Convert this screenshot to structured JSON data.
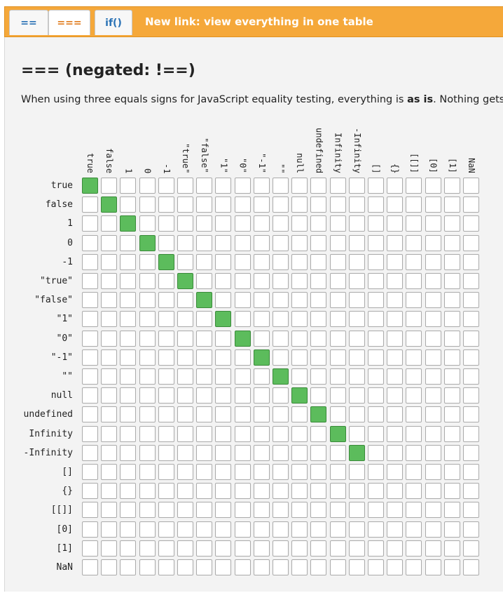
{
  "tabs": [
    {
      "label": "=="
    },
    {
      "label": "==="
    },
    {
      "label": "if()"
    }
  ],
  "new_link": "New link: view everything in one table",
  "title": "=== (negated: !==)",
  "intro": {
    "prefix": "When using three equals signs for JavaScript equality testing, everything is ",
    "bold": "as is",
    "suffix": ". Nothing gets co"
  },
  "colors": {
    "accent": "#f5a83a",
    "equal": "#5cbc5c",
    "not_equal": "#ffffff"
  },
  "labels": [
    "true",
    "false",
    "1",
    "0",
    "-1",
    "\"true\"",
    "\"false\"",
    "\"1\"",
    "\"0\"",
    "\"-1\"",
    "\"\"",
    "null",
    "undefined",
    "Infinity",
    "-Infinity",
    "[]",
    "{}",
    "[[]]",
    "[0]",
    "[1]",
    "NaN"
  ],
  "matrix_true_cells": [
    [
      0,
      0
    ],
    [
      1,
      1
    ],
    [
      2,
      2
    ],
    [
      3,
      3
    ],
    [
      4,
      4
    ],
    [
      5,
      5
    ],
    [
      6,
      6
    ],
    [
      7,
      7
    ],
    [
      8,
      8
    ],
    [
      9,
      9
    ],
    [
      10,
      10
    ],
    [
      11,
      11
    ],
    [
      12,
      12
    ],
    [
      13,
      13
    ],
    [
      14,
      14
    ]
  ]
}
